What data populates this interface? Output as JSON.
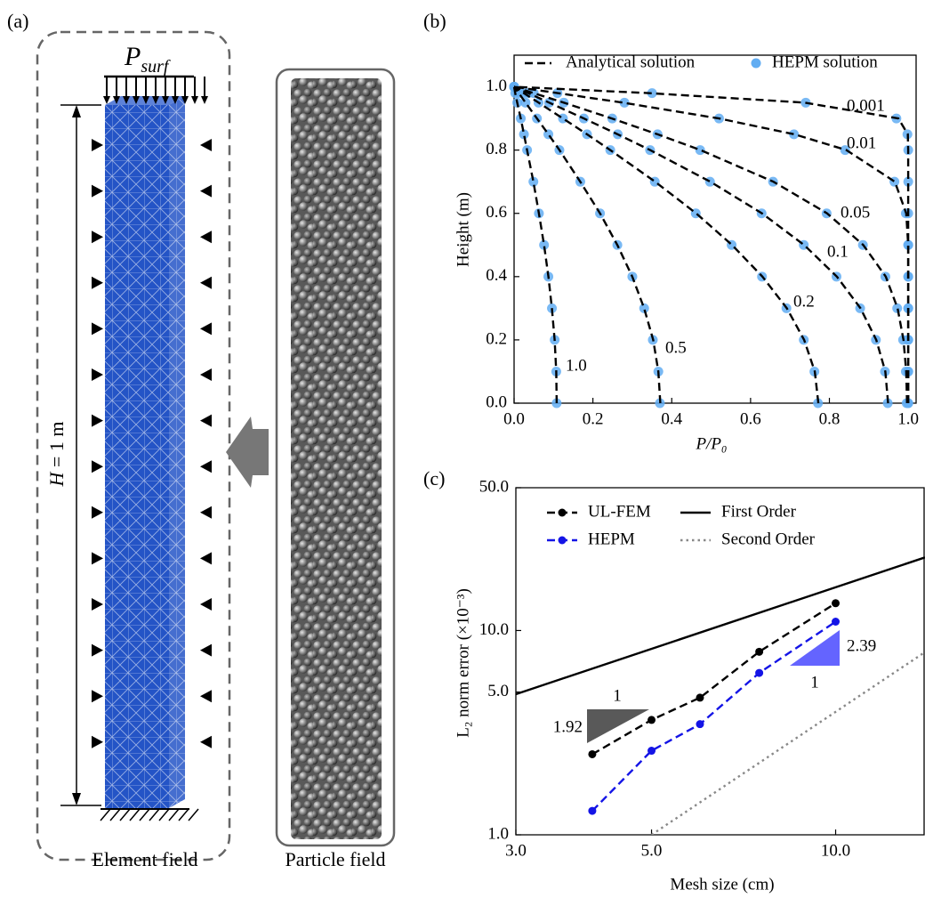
{
  "panel_a": {
    "label": "(a)",
    "load_symbol": "P",
    "load_subscript": "surf",
    "height_symbol": "H",
    "height_rest": " = 1 m",
    "left_caption": "Element field",
    "right_caption": "Particle field"
  },
  "chart_data": [
    {
      "type": "profile",
      "panel_label": "(b)",
      "xlabel": "P/P₀",
      "ylabel": "Height (m)",
      "xlim": [
        0,
        1.02
      ],
      "ylim": [
        0,
        1.1
      ],
      "xticks": [
        {
          "value": 0,
          "label": "0.0"
        },
        0.2,
        0.4,
        0.6,
        0.8,
        {
          "value": 1,
          "label": "1.0"
        }
      ],
      "yticks": [
        {
          "value": 0,
          "label": "0.0"
        },
        0.2,
        0.4,
        0.6,
        0.8,
        {
          "value": 1,
          "label": "1.0"
        }
      ],
      "y": [
        0,
        0.1,
        0.2,
        0.3,
        0.4,
        0.5,
        0.6,
        0.7,
        0.8,
        0.85,
        0.9,
        0.95,
        0.98,
        1.0
      ],
      "legend": "upper",
      "series": [
        {
          "name": "Analytical solution",
          "color": "#000000",
          "style": "dashed",
          "curves": [
            {
              "label": "0.001",
              "values": [
                1.0,
                1.0,
                1.0,
                1.0,
                1.0,
                1.0,
                1.0,
                1.0,
                1.0,
                0.999,
                0.975,
                0.737,
                0.345,
                0
              ]
            },
            {
              "label": "0.01",
              "values": [
                1.0,
                1.0,
                1.0,
                1.0,
                1.0,
                1.0,
                0.995,
                0.966,
                0.843,
                0.711,
                0.52,
                0.276,
                0.112,
                0
              ]
            },
            {
              "label": "0.05",
              "values": [
                0.997,
                0.995,
                0.988,
                0.973,
                0.943,
                0.886,
                0.794,
                0.658,
                0.473,
                0.364,
                0.248,
                0.126,
                0.05,
                0
              ]
            },
            {
              "label": "0.1",
              "values": [
                0.949,
                0.942,
                0.919,
                0.879,
                0.819,
                0.736,
                0.629,
                0.498,
                0.345,
                0.263,
                0.177,
                0.089,
                0.036,
                0
              ]
            },
            {
              "label": "0.2",
              "values": [
                0.772,
                0.763,
                0.736,
                0.692,
                0.63,
                0.553,
                0.462,
                0.358,
                0.244,
                0.185,
                0.124,
                0.062,
                0.025,
                0
              ]
            },
            {
              "label": "0.5",
              "values": [
                0.371,
                0.366,
                0.353,
                0.33,
                0.3,
                0.262,
                0.218,
                0.168,
                0.115,
                0.087,
                0.058,
                0.029,
                0.012,
                0
              ]
            },
            {
              "label": "1.0",
              "values": [
                0.108,
                0.107,
                0.103,
                0.096,
                0.087,
                0.076,
                0.063,
                0.049,
                0.033,
                0.025,
                0.017,
                0.008,
                0.003,
                0
              ]
            }
          ]
        },
        {
          "name": "HEPM solution",
          "color": "#62adf2",
          "style": "markers",
          "curves": [
            {
              "values": [
                1.0,
                1.0,
                1.0,
                1.0,
                1.0,
                1.0,
                1.0,
                1.0,
                1.0,
                0.998,
                0.97,
                0.74,
                0.35,
                0
              ]
            },
            {
              "values": [
                1.0,
                1.0,
                1.0,
                1.0,
                1.0,
                1.0,
                0.994,
                0.965,
                0.84,
                0.71,
                0.52,
                0.28,
                0.11,
                0
              ]
            },
            {
              "values": [
                0.996,
                0.994,
                0.987,
                0.972,
                0.942,
                0.885,
                0.793,
                0.657,
                0.472,
                0.364,
                0.249,
                0.126,
                0.05,
                0
              ]
            },
            {
              "values": [
                0.948,
                0.941,
                0.918,
                0.878,
                0.818,
                0.735,
                0.628,
                0.497,
                0.345,
                0.263,
                0.177,
                0.089,
                0.036,
                0
              ]
            },
            {
              "values": [
                0.771,
                0.762,
                0.735,
                0.691,
                0.629,
                0.552,
                0.461,
                0.357,
                0.244,
                0.185,
                0.124,
                0.062,
                0.025,
                0
              ]
            },
            {
              "values": [
                0.37,
                0.366,
                0.352,
                0.33,
                0.3,
                0.262,
                0.218,
                0.168,
                0.115,
                0.087,
                0.058,
                0.029,
                0.012,
                0
              ]
            },
            {
              "values": [
                0.108,
                0.107,
                0.103,
                0.096,
                0.087,
                0.076,
                0.063,
                0.049,
                0.033,
                0.025,
                0.017,
                0.008,
                0.003,
                0
              ]
            }
          ]
        }
      ]
    },
    {
      "type": "line",
      "panel_label": "(c)",
      "xlabel": "Mesh size (cm)",
      "ylabel": "L₂ norm error (×10⁻³)",
      "log_x": true,
      "log_y": true,
      "xlim": [
        3,
        14
      ],
      "ylim": [
        1,
        50
      ],
      "xticks": [
        {
          "value": 3,
          "label": "3.0"
        },
        {
          "value": 5,
          "label": "5.0"
        },
        {
          "value": 10,
          "label": "10.0"
        }
      ],
      "yticks": [
        {
          "value": 1,
          "label": "1.0"
        },
        {
          "value": 5,
          "label": "5.0"
        },
        {
          "value": 10,
          "label": "10.0"
        },
        {
          "value": 50,
          "label": "50.0"
        }
      ],
      "legend": "upper left",
      "series": [
        {
          "name": "UL-FEM",
          "color": "#000000",
          "style": "dashed",
          "marker": true,
          "x": [
            4,
            5,
            6,
            7.5,
            10
          ],
          "values": [
            2.48,
            3.65,
            4.69,
            7.87,
            13.6
          ]
        },
        {
          "name": "HEPM",
          "color": "#1414e6",
          "style": "dashed",
          "marker": true,
          "x": [
            4,
            5,
            6,
            7.5,
            10
          ],
          "values": [
            1.31,
            2.58,
            3.48,
            6.2,
            11.05
          ]
        },
        {
          "name": "First Order",
          "color": "#000000",
          "style": "solid",
          "marker": false,
          "x": [
            3,
            14
          ],
          "values": [
            4.88,
            22.8
          ]
        },
        {
          "name": "Second Order",
          "color": "#888888",
          "style": "dotted",
          "marker": false,
          "x": [
            5,
            14
          ],
          "values": [
            1.0,
            7.84
          ]
        }
      ],
      "slope_triangles": [
        {
          "rise": "1.92",
          "run": "1",
          "color": "#595959"
        },
        {
          "rise": "2.39",
          "run": "1",
          "color": "#6464ff"
        }
      ]
    }
  ]
}
